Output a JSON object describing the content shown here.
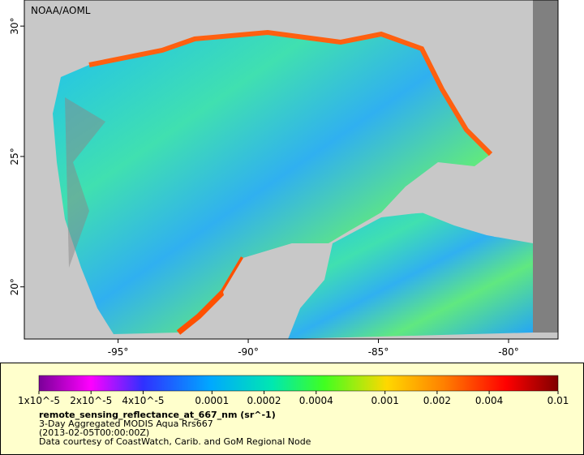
{
  "map": {
    "watermark": "NOAA/AOML",
    "xlim": [
      -98.6,
      -78.1
    ],
    "ylim": [
      18.0,
      31.0
    ],
    "xticks": [
      {
        "value": -95,
        "label": "-95°"
      },
      {
        "value": -90,
        "label": "-90°"
      },
      {
        "value": -85,
        "label": "-85°"
      },
      {
        "value": -80,
        "label": "-80°"
      }
    ],
    "yticks": [
      {
        "value": 20,
        "label": "20°"
      },
      {
        "value": 25,
        "label": "25°"
      },
      {
        "value": 30,
        "label": "30°"
      }
    ]
  },
  "colorbar": {
    "log": true,
    "range": [
      1e-05,
      0.01
    ],
    "ticks": [
      {
        "value": 1e-05,
        "label": "1x10^-5"
      },
      {
        "value": 2e-05,
        "label": "2x10^-5"
      },
      {
        "value": 4e-05,
        "label": "4x10^-5"
      },
      0.0001,
      0.0002,
      0.0004,
      0.001,
      0.002,
      0.004,
      0.01
    ]
  },
  "caption": {
    "variable": "remote_sensing_reflectance_at_667_nm (sr^-1)",
    "product": "3-Day Aggregated MODIS Aqua Rrs667",
    "time": "(2013-02-05T00:00:00Z)",
    "credit": "Data courtesy of CoastWatch, Carib. and GoM Regional Node"
  }
}
